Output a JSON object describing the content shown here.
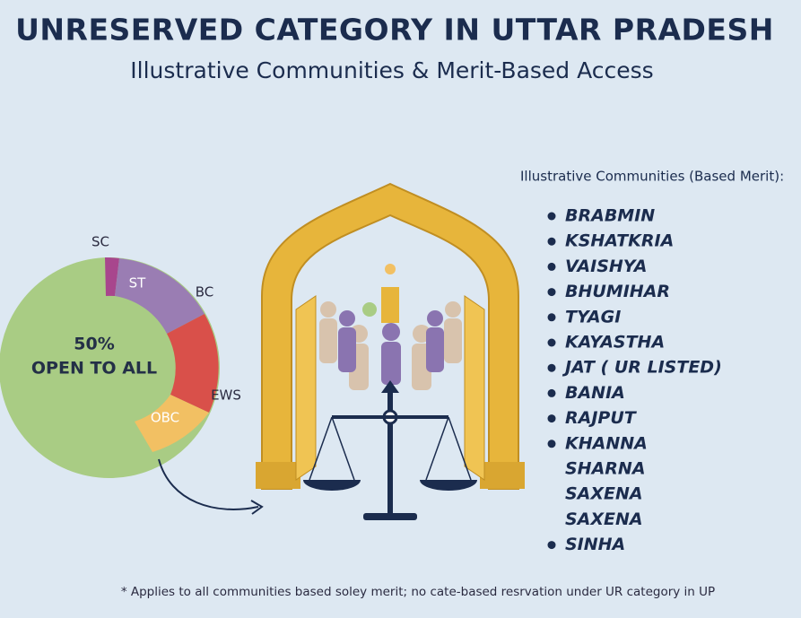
{
  "header": {
    "title": "UNRESERVED CATEGORY IN UTTAR PRADESH",
    "subtitle": "Illustrative Communities & Merit-Based Access"
  },
  "donut": {
    "center": [
      "50%",
      "OPEN TO ALL"
    ],
    "labels": {
      "sc": "SC",
      "st": "ST",
      "bc": "BC",
      "ews": "EWS",
      "obc": "OBC"
    }
  },
  "list": {
    "heading": "Illustrative Communities (Based Merit):",
    "items": [
      {
        "text": "BRABMIN",
        "bullet": true
      },
      {
        "text": "KSHATKRIA",
        "bullet": true
      },
      {
        "text": "VAISHYA",
        "bullet": true
      },
      {
        "text": "BHUMIHAR",
        "bullet": true
      },
      {
        "text": "TYAGI",
        "bullet": true
      },
      {
        "text": "KAYASTHA",
        "bullet": true
      },
      {
        "text": "JAT (  UR LISTED)",
        "bullet": true
      },
      {
        "text": "BANIA",
        "bullet": true
      },
      {
        "text": "RAJPUT",
        "bullet": true
      },
      {
        "text": "KHANNA",
        "bullet": true
      },
      {
        "text": "SHARNA",
        "bullet": false
      },
      {
        "text": "SAXENA",
        "bullet": false
      },
      {
        "text": "SAXENA",
        "bullet": false
      },
      {
        "text": "SINHA",
        "bullet": true
      }
    ]
  },
  "footnote": "* Applies to all communities based soley merit; no cate-based resrvation under UR category in UP"
}
